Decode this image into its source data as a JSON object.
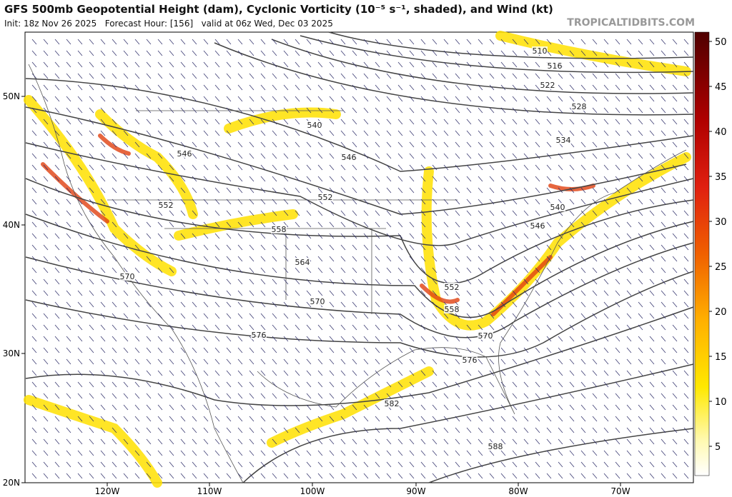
{
  "header": {
    "title": "GFS 500mb Geopotential Height (dam), Cyclonic Vorticity (10⁻⁵ s⁻¹, shaded), and Wind (kt)",
    "subtitle": "Init: 18z Nov 26 2025   Forecast Hour: [156]   valid at 06z Wed, Dec 03 2025",
    "site": "TROPICALTIDBITS.COM"
  },
  "map": {
    "lat_labels": [
      "50N",
      "40N",
      "30N",
      "20N"
    ],
    "lon_labels": [
      "120W",
      "110W",
      "100W",
      "90W",
      "80W",
      "70W"
    ],
    "contour_labels": [
      "510",
      "516",
      "522",
      "528",
      "534",
      "540",
      "546",
      "546",
      "552",
      "552",
      "558",
      "564",
      "570",
      "570",
      "576",
      "582",
      "588",
      "540",
      "546",
      "552",
      "558",
      "570",
      "576"
    ]
  },
  "colorbar": {
    "ticks": [
      "50",
      "45",
      "40",
      "35",
      "30",
      "25",
      "20",
      "15",
      "10",
      "5"
    ]
  }
}
